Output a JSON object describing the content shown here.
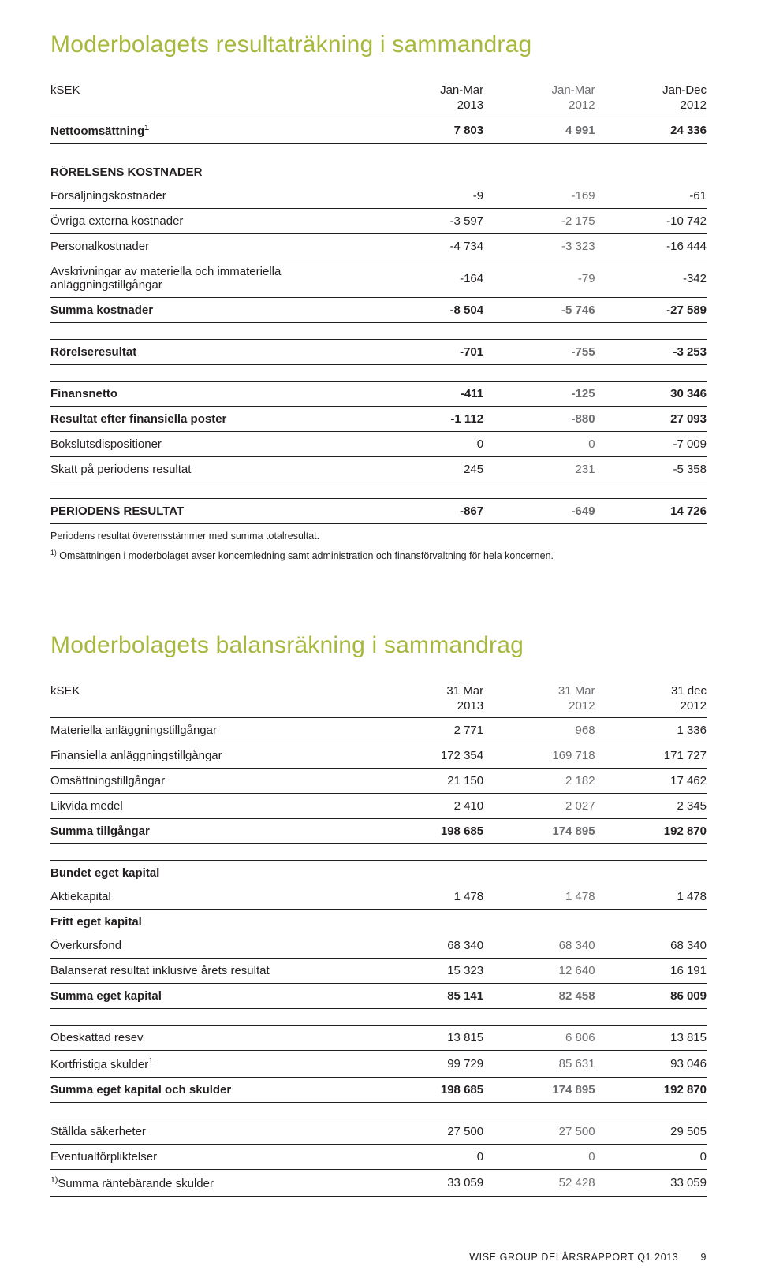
{
  "t1": {
    "title": "Moderbolagets resultaträkning i sammandrag",
    "unit": "kSEK",
    "h1": [
      "Jan-Mar",
      "Jan-Mar",
      "Jan-Dec"
    ],
    "h2": [
      "2013",
      "2012",
      "2012"
    ],
    "rows": [
      {
        "lbl": "Nettoomsättning",
        "sup": "1",
        "v": [
          "7 803",
          "4 991",
          "24 336"
        ],
        "bold": true,
        "top": "thick",
        "bottom": "thick"
      },
      {
        "spacer": true
      },
      {
        "lbl": "RÖRELSENS KOSTNADER",
        "section": true
      },
      {
        "lbl": "Försäljningskostnader",
        "v": [
          "-9",
          "-169",
          "-61"
        ],
        "bottom": "thin"
      },
      {
        "lbl": "Övriga externa kostnader",
        "v": [
          "-3 597",
          "-2 175",
          "-10 742"
        ],
        "bottom": "thin"
      },
      {
        "lbl": "Personalkostnader",
        "v": [
          "-4 734",
          "-3 323",
          "-16 444"
        ],
        "bottom": "thin"
      },
      {
        "lbl": "Avskrivningar av materiella och immateriella anläggningstillgångar",
        "v": [
          "-164",
          "-79",
          "-342"
        ],
        "bottom": "thin"
      },
      {
        "lbl": "Summa kostnader",
        "v": [
          "-8 504",
          "-5 746",
          "-27 589"
        ],
        "bold": true,
        "bottom": "thick"
      },
      {
        "spacer": true
      },
      {
        "lbl": "Rörelseresultat",
        "v": [
          "-701",
          "-755",
          "-3 253"
        ],
        "bold": true,
        "top": "thick",
        "bottom": "thick"
      },
      {
        "spacer": true
      },
      {
        "lbl": "Finansnetto",
        "v": [
          "-411",
          "-125",
          "30 346"
        ],
        "bold": true,
        "top": "thick",
        "bottom": "thin"
      },
      {
        "lbl": "Resultat efter finansiella poster",
        "v": [
          "-1 112",
          "-880",
          "27 093"
        ],
        "bold": true,
        "bottom": "thin"
      },
      {
        "lbl": "Bokslutsdispositioner",
        "v": [
          "0",
          "0",
          "-7 009"
        ],
        "bottom": "thin"
      },
      {
        "lbl": "Skatt på periodens resultat",
        "v": [
          "245",
          "231",
          "-5 358"
        ],
        "bottom": "thick"
      },
      {
        "spacer": true
      },
      {
        "lbl": "PERIODENS RESULTAT",
        "v": [
          "-867",
          "-649",
          "14 726"
        ],
        "bold": true,
        "top": "thick",
        "bottom": "thick"
      }
    ],
    "notes": [
      "Periodens resultat överensstämmer med summa totalresultat.",
      "1) Omsättningen i moderbolaget avser koncernledning samt administration och finansförvaltning för hela koncernen."
    ]
  },
  "t2": {
    "title": "Moderbolagets balansräkning i sammandrag",
    "unit": "kSEK",
    "h1": [
      "31 Mar",
      "31 Mar",
      "31 dec"
    ],
    "h2": [
      "2013",
      "2012",
      "2012"
    ],
    "rows": [
      {
        "lbl": "Materiella anläggningstillgångar",
        "v": [
          "2 771",
          "968",
          "1 336"
        ],
        "top": "thick",
        "bottom": "thin"
      },
      {
        "lbl": "Finansiella anläggningstillgångar",
        "v": [
          "172 354",
          "169 718",
          "171 727"
        ],
        "bottom": "thin"
      },
      {
        "lbl": "Omsättningstillgångar",
        "v": [
          "21 150",
          "2 182",
          "17 462"
        ],
        "bottom": "thin"
      },
      {
        "lbl": "Likvida medel",
        "v": [
          "2 410",
          "2 027",
          "2 345"
        ],
        "bottom": "thin"
      },
      {
        "lbl": "Summa tillgångar",
        "v": [
          "198 685",
          "174 895",
          "192 870"
        ],
        "bold": true,
        "bottom": "thick"
      },
      {
        "spacer": true
      },
      {
        "lbl": "Bundet eget kapital",
        "section": true,
        "top": "thick"
      },
      {
        "lbl": "Aktiekapital",
        "v": [
          "1 478",
          "1 478",
          "1 478"
        ],
        "bottom": "thin"
      },
      {
        "lbl": "Fritt eget kapital",
        "section": true
      },
      {
        "lbl": "Överkursfond",
        "v": [
          "68 340",
          "68 340",
          "68 340"
        ],
        "bottom": "thin"
      },
      {
        "lbl": "Balanserat resultat inklusive årets resultat",
        "v": [
          "15 323",
          "12 640",
          "16 191"
        ],
        "bottom": "thin"
      },
      {
        "lbl": "Summa eget kapital",
        "v": [
          "85 141",
          "82 458",
          "86 009"
        ],
        "bold": true,
        "bottom": "thick"
      },
      {
        "spacer": true
      },
      {
        "lbl": "Obeskattad resev",
        "v": [
          "13 815",
          "6 806",
          "13 815"
        ],
        "top": "thick",
        "bottom": "thin"
      },
      {
        "lbl": "Kortfristiga skulder",
        "sup": "1",
        "v": [
          "99 729",
          "85 631",
          "93 046"
        ],
        "bottom": "thin"
      },
      {
        "lbl": "Summa eget kapital och skulder",
        "v": [
          "198 685",
          "174 895",
          "192 870"
        ],
        "bold": true,
        "bottom": "thick"
      },
      {
        "spacer": true
      },
      {
        "lbl": "Ställda säkerheter",
        "v": [
          "27 500",
          "27 500",
          "29 505"
        ],
        "top": "thick",
        "bottom": "thin"
      },
      {
        "lbl": "Eventualförpliktelser",
        "v": [
          "0",
          "0",
          "0"
        ],
        "bottom": "thin"
      },
      {
        "lbl": "Summa räntebärande skulder",
        "presup": "1)",
        "v": [
          "33 059",
          "52 428",
          "33 059"
        ],
        "bottom": "thick"
      }
    ]
  },
  "footer": {
    "text": "WISE GROUP DELÅRSRAPPORT Q1 2013",
    "page": "9"
  }
}
